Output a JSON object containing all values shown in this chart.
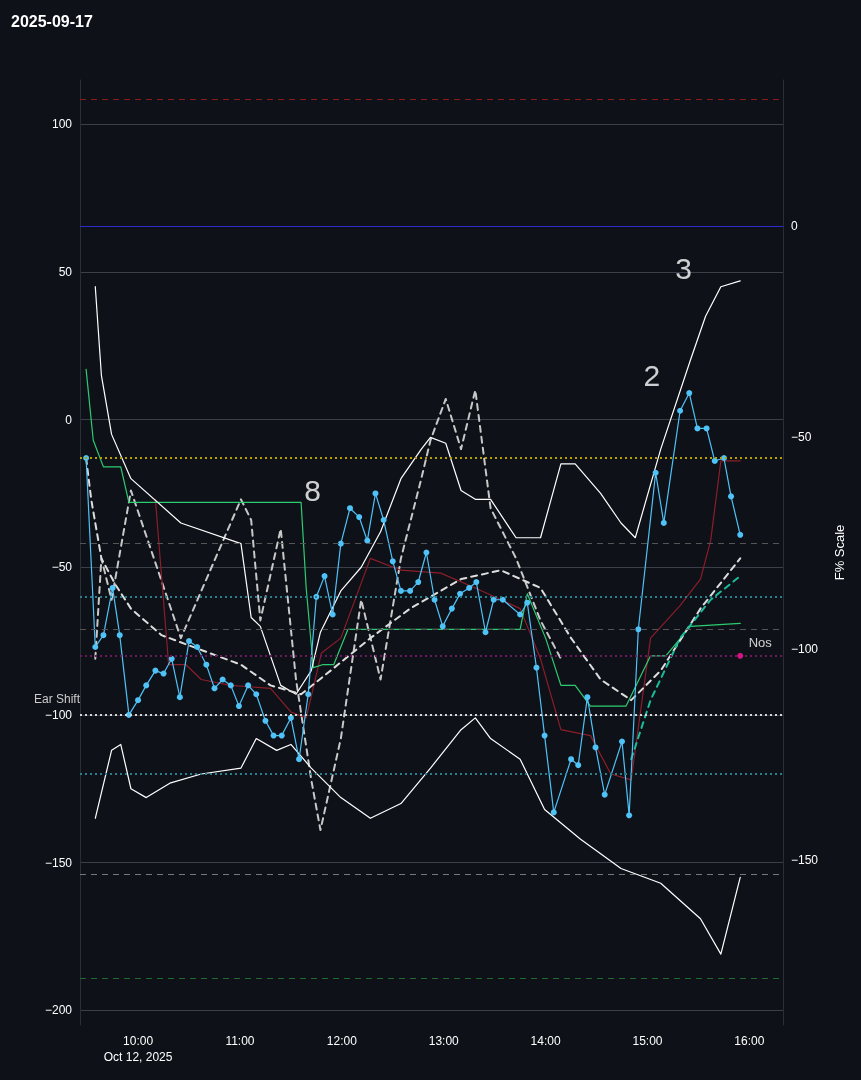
{
  "chart_data": {
    "type": "line",
    "title": "2025-09-17",
    "y2label": "F% Scale",
    "xlim": [
      9.43,
      16.33
    ],
    "ylim": [
      -205,
      115
    ],
    "y2lim": [
      -189,
      34.5
    ],
    "xticks": [
      {
        "value": 10,
        "label": "10:00\nOct 12, 2025"
      },
      {
        "value": 11,
        "label": "11:00"
      },
      {
        "value": 12,
        "label": "12:00"
      },
      {
        "value": 13,
        "label": "13:00"
      },
      {
        "value": 14,
        "label": "14:00"
      },
      {
        "value": 15,
        "label": "15:00"
      },
      {
        "value": 16,
        "label": "16:00"
      }
    ],
    "yticks": [
      100,
      50,
      0,
      {
        "value": -50,
        "label": "−50"
      },
      {
        "value": -100,
        "label": "−100"
      },
      {
        "value": -150,
        "label": "−150"
      },
      {
        "value": -200,
        "label": "−200"
      }
    ],
    "y2ticks": [
      0,
      {
        "value": -50,
        "label": "−50"
      },
      {
        "value": -100,
        "label": "−100"
      },
      {
        "value": -150,
        "label": "−150"
      }
    ],
    "grid": "y",
    "legend": false,
    "series": [
      {
        "color": "#c8c8c8",
        "line_style": "dashed",
        "marker": "none",
        "x": [
          9.58,
          9.64,
          9.74,
          9.93,
          10.42,
          11.01,
          11.11,
          11.2,
          11.4,
          11.55,
          11.7,
          11.79,
          11.99,
          12.19,
          12.38,
          12.58,
          12.78,
          12.87,
          13.02,
          13.17,
          13.31,
          13.46,
          13.71,
          13.95,
          14.15
        ],
        "values": [
          -81,
          -47,
          -61,
          -24,
          -74,
          -27,
          -34,
          -68,
          -37,
          -88,
          -122,
          -139,
          -108,
          -61,
          -88,
          -47,
          -20,
          -7,
          7,
          -10,
          10,
          -30,
          -47,
          -68,
          -81
        ]
      },
      {
        "type": "line",
        "color": "#8b1e2a",
        "line_style": "solid",
        "marker": "none",
        "x": [
          10.17,
          10.3,
          10.47,
          10.62,
          10.91,
          11.3,
          11.5,
          11.65,
          11.8,
          11.99,
          12.28,
          12.58,
          12.97,
          13.31,
          13.75,
          13.95,
          14.15,
          14.44,
          14.64,
          14.84,
          15.03,
          15.32,
          15.52,
          15.62,
          15.72,
          15.91
        ],
        "values": [
          -27,
          -83,
          -83,
          -88,
          -90,
          -91,
          -99,
          -101,
          -79,
          -74,
          -47,
          -51,
          -52,
          -57,
          -64,
          -81,
          -105,
          -107,
          -120,
          -122,
          -74,
          -63,
          -54,
          -41,
          -14,
          -14
        ]
      },
      {
        "type": "line",
        "color": "#2ecc71",
        "line_style": "solid",
        "marker": "none",
        "x": [
          9.49,
          9.56,
          9.66,
          9.83,
          9.91,
          11.6,
          11.65,
          11.72,
          11.81,
          11.92,
          12.06,
          13.75,
          13.82,
          14.0,
          14.15,
          14.29,
          14.44,
          14.64,
          14.79,
          15.03,
          15.18,
          15.42,
          15.91
        ],
        "values": [
          17,
          -7,
          -16,
          -16,
          -28,
          -28,
          -57,
          -84,
          -83,
          -83,
          -71,
          -71,
          -59,
          -74,
          -90,
          -90,
          -97,
          -97,
          -97,
          -80,
          -80,
          -70,
          -69
        ]
      },
      {
        "type": "line",
        "color": "#ffffff",
        "line_style": "solid",
        "marker": "none",
        "x": [
          9.58,
          9.64,
          9.74,
          9.93,
          10.42,
          11.01,
          11.11,
          11.2,
          11.4,
          11.55,
          11.7,
          11.79,
          11.99,
          12.19,
          12.38,
          12.58,
          12.78,
          12.87,
          13.02,
          13.17,
          13.31,
          13.46,
          13.71,
          13.95,
          14.15,
          14.29,
          14.54,
          14.74,
          14.88,
          15.13,
          15.42,
          15.57,
          15.72,
          15.91
        ],
        "values": [
          45,
          15,
          -5,
          -20,
          -35,
          -42,
          -67,
          -70,
          -90,
          -93,
          -85,
          -72,
          -58,
          -50,
          -38,
          -20,
          -10,
          -6,
          -8,
          -24,
          -27,
          -27,
          -40,
          -40,
          -15,
          -15,
          -25,
          -35,
          -40,
          -10,
          20,
          35,
          45,
          47
        ]
      },
      {
        "type": "line",
        "color": "#ffffff",
        "line_style": "solid",
        "marker": "none",
        "x": [
          9.58,
          9.74,
          9.83,
          9.93,
          10.08,
          10.32,
          10.62,
          11.01,
          11.16,
          11.36,
          11.5,
          11.7,
          11.99,
          12.28,
          12.58,
          12.87,
          13.17,
          13.31,
          13.46,
          13.75,
          13.99,
          14.34,
          14.74,
          15.13,
          15.52,
          15.72,
          15.91
        ],
        "values": [
          -135,
          -112,
          -110,
          -125,
          -128,
          -123,
          -120,
          -118,
          -108,
          -112,
          -110,
          -118,
          -128,
          -135,
          -130,
          -118,
          -105,
          -101,
          -108,
          -115,
          -132,
          -142,
          -152,
          -157,
          -169,
          -181,
          -155
        ]
      },
      {
        "type": "line",
        "color": "#dddddd",
        "line_style": "dashed",
        "marker": "none",
        "x": [
          9.49,
          9.54,
          9.64,
          9.78,
          9.93,
          10.23,
          10.62,
          11.01,
          11.3,
          11.6,
          11.89,
          12.28,
          12.67,
          13.17,
          13.56,
          13.95,
          14.25,
          14.54,
          14.84,
          15.13,
          15.52,
          15.91
        ],
        "values": [
          -13,
          -27,
          -47,
          -56,
          -64,
          -73,
          -78,
          -83,
          -90,
          -93,
          -85,
          -74,
          -64,
          -54,
          -51,
          -57,
          -74,
          -88,
          -95,
          -85,
          -64,
          -47
        ]
      },
      {
        "type": "line",
        "color": "#1abc9c",
        "line_style": "dashed",
        "marker": "none",
        "x": [
          14.84,
          15.03,
          15.32,
          15.62,
          15.91
        ],
        "values": [
          -115,
          -95,
          -74,
          -61,
          -53
        ]
      },
      {
        "type": "line",
        "color": "#4fc3f7",
        "line_style": "solid",
        "marker": "circle",
        "x": [
          9.49,
          9.58,
          9.66,
          9.75,
          9.82,
          9.91,
          10.0,
          10.08,
          10.17,
          10.25,
          10.33,
          10.41,
          10.5,
          10.58,
          10.67,
          10.75,
          10.83,
          10.91,
          10.99,
          11.08,
          11.16,
          11.25,
          11.33,
          11.41,
          11.5,
          11.58,
          11.67,
          11.75,
          11.83,
          11.91,
          11.99,
          12.08,
          12.17,
          12.25,
          12.33,
          12.41,
          12.5,
          12.58,
          12.67,
          12.75,
          12.83,
          12.91,
          12.99,
          13.08,
          13.16,
          13.25,
          13.32,
          13.41,
          13.49,
          13.58,
          13.75,
          13.82,
          13.91,
          13.99,
          14.08,
          14.25,
          14.32,
          14.41,
          14.49,
          14.58,
          14.75,
          14.82,
          14.91,
          15.08,
          15.16,
          15.32,
          15.41,
          15.49,
          15.58,
          15.66,
          15.75,
          15.82,
          15.91
        ],
        "values": [
          -13,
          -77,
          -73,
          -57,
          -73,
          -100,
          -95,
          -90,
          -85,
          -86,
          -81,
          -94,
          -75,
          -77,
          -83,
          -91,
          -88,
          -90,
          -97,
          -90,
          -93,
          -102,
          -107,
          -107,
          -101,
          -115,
          -93,
          -60,
          -53,
          -66,
          -42,
          -30,
          -33,
          -41,
          -25,
          -34,
          -48,
          -58,
          -58,
          -55,
          -45,
          -61,
          -70,
          -64,
          -59,
          -57,
          -55,
          -72,
          -61,
          -61,
          -66,
          -62,
          -84,
          -107,
          -133,
          -115,
          -117,
          -94,
          -111,
          -127,
          -109,
          -134,
          -71,
          -18,
          -35,
          3,
          9,
          -3,
          -3,
          -14,
          -13,
          -26,
          -39
        ]
      },
      {
        "type": "scatter",
        "color": "#ff1493",
        "marker": "circle",
        "x": [
          15.91
        ],
        "values": [
          -80
        ]
      }
    ],
    "ref_lines": [
      {
        "axis": "y",
        "value": 108.5,
        "color": "#8b1a1a",
        "line_style": "dashed"
      },
      {
        "axis": "y2",
        "value": 0,
        "color": "#2b2bd0",
        "line_style": "solid"
      },
      {
        "axis": "y",
        "value": -13,
        "color": "#b8a000",
        "line_style": "dotted"
      },
      {
        "axis": "y",
        "value": -42,
        "color": "#555555",
        "line_style": "dashed"
      },
      {
        "axis": "y",
        "value": -60,
        "color": "#2a7f8f",
        "line_style": "dotted"
      },
      {
        "axis": "y",
        "value": -71,
        "color": "#555555",
        "line_style": "dashed"
      },
      {
        "axis": "y",
        "value": -80,
        "color": "#6a1a5a",
        "line_style": "dotted"
      },
      {
        "axis": "y",
        "value": -100,
        "color": "#d8d8d8",
        "line_style": "dotted",
        "label": "Ear Shift"
      },
      {
        "axis": "y",
        "value": -120,
        "color": "#2a7f8f",
        "line_style": "dotted"
      },
      {
        "axis": "y",
        "value": -154,
        "color": "#777777",
        "line_style": "dashed"
      },
      {
        "axis": "y",
        "value": -189,
        "color": "#1f6b2f",
        "line_style": "dashed"
      }
    ],
    "annotations": [
      {
        "text": "8",
        "x": 12.08,
        "y": -30
      },
      {
        "text": "2",
        "x": 15.41,
        "y": 9
      },
      {
        "text": "3",
        "x": 15.72,
        "y": 45
      },
      {
        "text": "Nos",
        "x": 15.91,
        "y": -80
      }
    ]
  }
}
